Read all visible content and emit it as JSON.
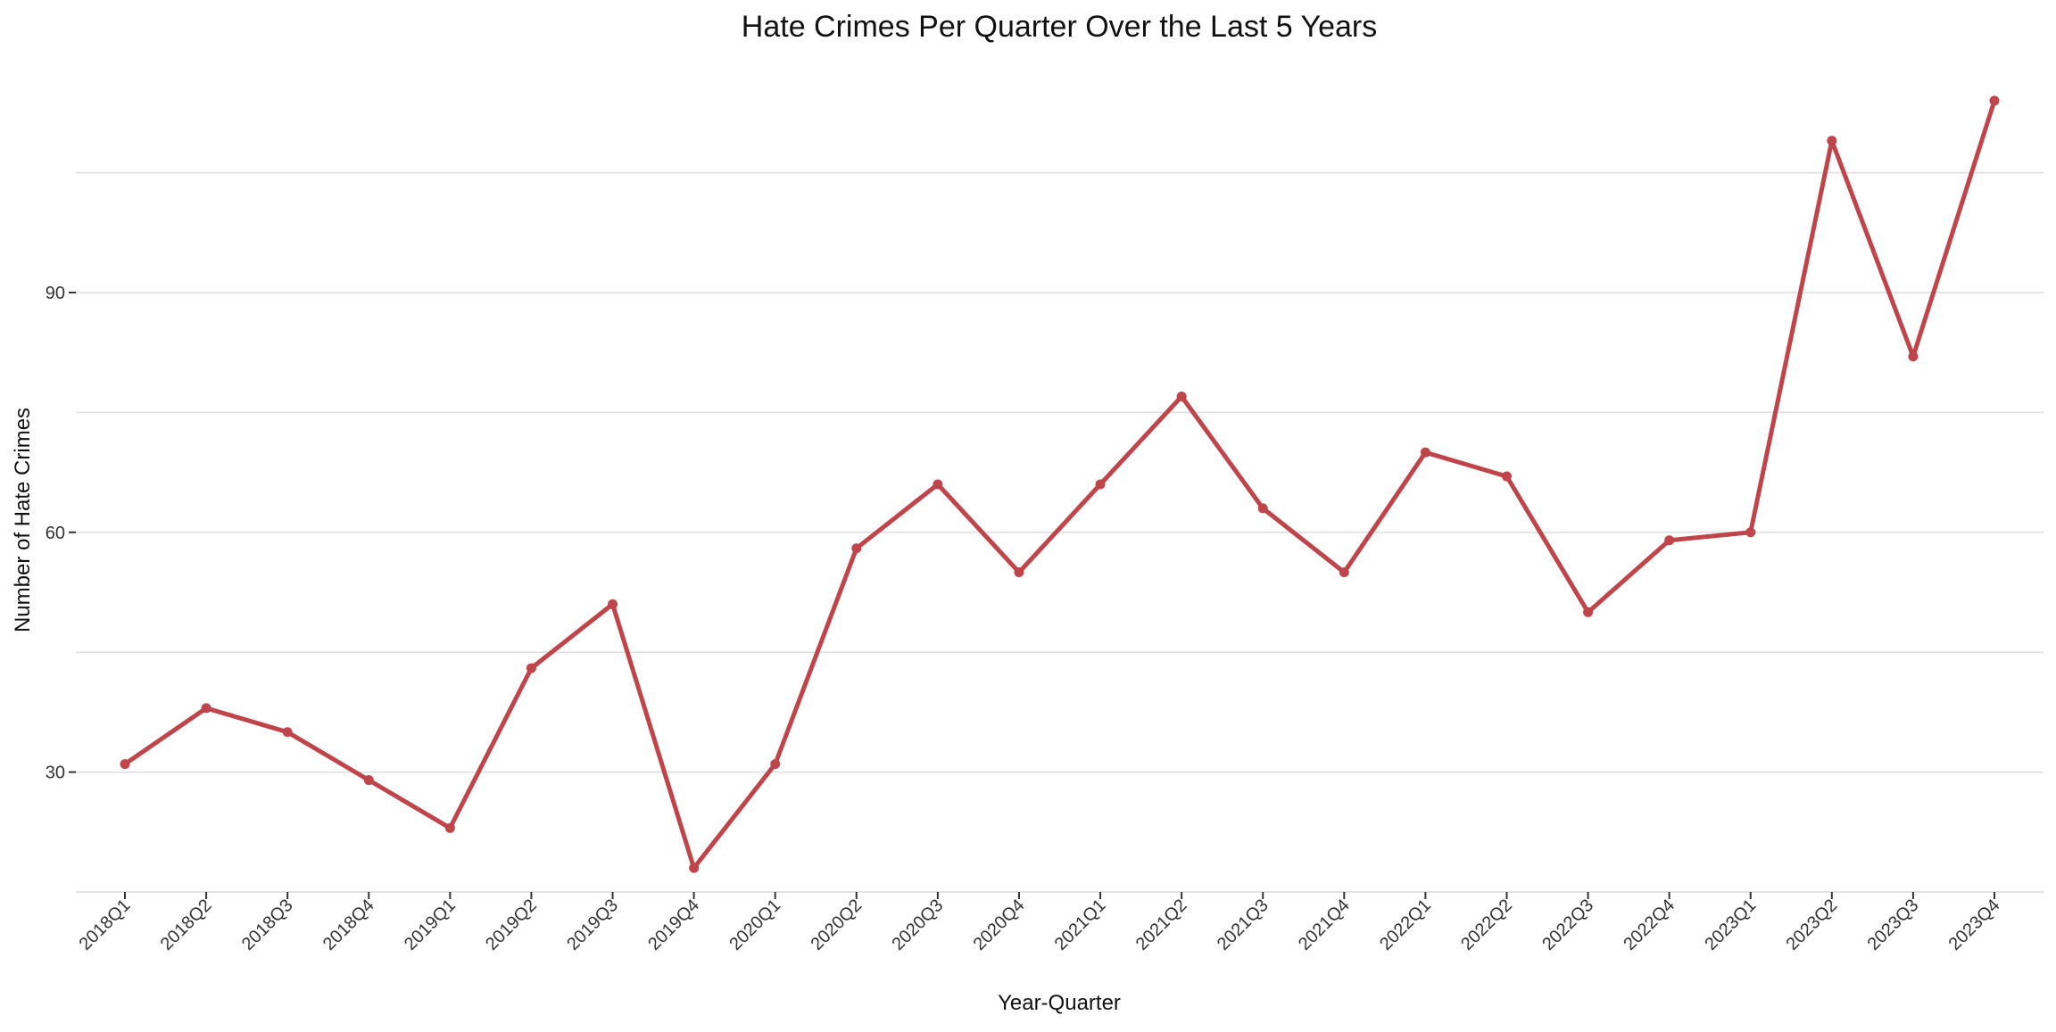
{
  "chart_data": {
    "type": "line",
    "title": "Hate Crimes Per Quarter Over the Last 5 Years",
    "xlabel": "Year-Quarter",
    "ylabel": "Number of Hate Crimes",
    "categories": [
      "2018Q1",
      "2018Q2",
      "2018Q3",
      "2018Q4",
      "2019Q1",
      "2019Q2",
      "2019Q3",
      "2019Q4",
      "2020Q1",
      "2020Q2",
      "2020Q3",
      "2020Q4",
      "2021Q1",
      "2021Q2",
      "2021Q3",
      "2021Q4",
      "2022Q1",
      "2022Q2",
      "2022Q3",
      "2022Q4",
      "2023Q1",
      "2023Q2",
      "2023Q3",
      "2023Q4"
    ],
    "series": [
      {
        "values": [
          31,
          38,
          35,
          29,
          23,
          43,
          51,
          18,
          31,
          58,
          66,
          55,
          66,
          77,
          63,
          55,
          70,
          67,
          50,
          59,
          60,
          109,
          82,
          114
        ]
      }
    ],
    "yticks": [
      30,
      60,
      90
    ],
    "ylim": [
      15,
      116
    ],
    "grid": true,
    "line_color": "#c0454a"
  }
}
